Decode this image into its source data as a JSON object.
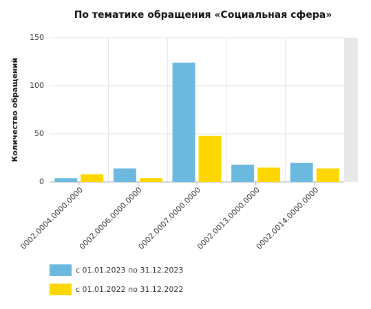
{
  "chart_data": {
    "type": "bar",
    "title": "По тематике обращения «Социальная сфера»",
    "y_label": "Количество обращений",
    "categories": [
      "0002.0004.0000.0000",
      "0002.0006.0000.0000",
      "0002.0007.0000.0000",
      "0002.0013.0000.0000",
      "0002.0014.0000.0000"
    ],
    "series": [
      {
        "name": "с 01.01.2023 по 31.12.2023",
        "color": "#6cb9e0",
        "values": [
          4,
          14,
          124,
          18,
          20
        ]
      },
      {
        "name": "с 01.01.2022 по 31.12.2022",
        "color": "#ffd700",
        "values": [
          8,
          4,
          48,
          15,
          14
        ]
      }
    ],
    "ylim": [
      0,
      150
    ],
    "yticks": [
      0,
      50,
      100,
      150
    ],
    "grid": true,
    "legend": "bottom-left"
  }
}
